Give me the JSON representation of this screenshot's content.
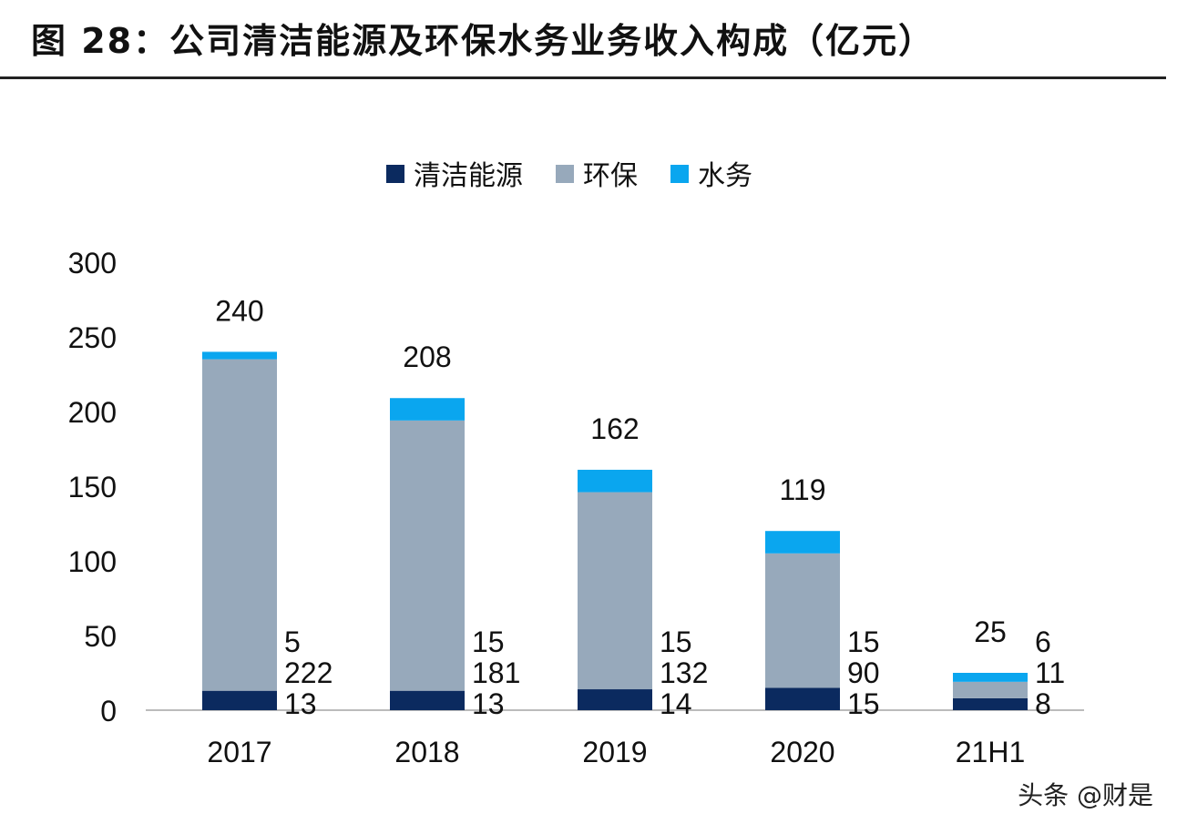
{
  "header": {
    "title": "图 28：公司清洁能源及环保水务业务收入构成（亿元）"
  },
  "watermark": "头条 @财是",
  "chart_data": {
    "type": "bar",
    "stacked": true,
    "categories": [
      "2017",
      "2018",
      "2019",
      "2020",
      "21H1"
    ],
    "series": [
      {
        "name": "清洁能源",
        "color": "#0b2a5f",
        "values": [
          13,
          13,
          14,
          15,
          8
        ]
      },
      {
        "name": "环保",
        "color": "#97a9bb",
        "values": [
          222,
          181,
          132,
          90,
          11
        ]
      },
      {
        "name": "水务",
        "color": "#0aa6ef",
        "values": [
          5,
          15,
          15,
          15,
          6
        ]
      }
    ],
    "totals": [
      240,
      208,
      162,
      119,
      25
    ],
    "ylim": [
      0,
      300
    ],
    "yticks": [
      0,
      50,
      100,
      150,
      200,
      250,
      300
    ],
    "legend": "top",
    "grid": false
  }
}
